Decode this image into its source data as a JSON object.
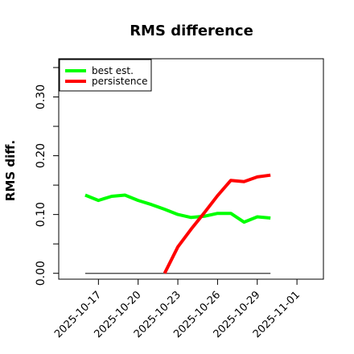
{
  "chart_data": {
    "type": "line",
    "title": "RMS difference",
    "xlabel": "",
    "ylabel": "RMS diff.",
    "x_start": "2025-10-16",
    "x_ticks": [
      "2025-10-17",
      "2025-10-20",
      "2025-10-23",
      "2025-10-26",
      "2025-10-29",
      "2025-11-01"
    ],
    "x_range": [
      "2025-10-14",
      "2025-11-03"
    ],
    "y_ticks": [
      0.0,
      0.1,
      0.2,
      0.3
    ],
    "y_minor_ticks": [
      0.05,
      0.15,
      0.25,
      0.35
    ],
    "ylim": [
      -0.01,
      0.365
    ],
    "legend": {
      "position": "top-left"
    },
    "grid": false,
    "series": [
      {
        "name": "best est.",
        "color": "#00ff00",
        "x": [
          "2025-10-16",
          "2025-10-17",
          "2025-10-18",
          "2025-10-19",
          "2025-10-20",
          "2025-10-21",
          "2025-10-22",
          "2025-10-23",
          "2025-10-24",
          "2025-10-25",
          "2025-10-26",
          "2025-10-27",
          "2025-10-28",
          "2025-10-29",
          "2025-10-30"
        ],
        "values": [
          0.133,
          0.124,
          0.131,
          0.133,
          0.124,
          0.117,
          0.109,
          0.1,
          0.095,
          0.097,
          0.102,
          0.102,
          0.087,
          0.096,
          0.094
        ]
      },
      {
        "name": "persistence",
        "color": "#ff0000",
        "x": [
          "2025-10-22",
          "2025-10-23",
          "2025-10-24",
          "2025-10-25",
          "2025-10-26",
          "2025-10-27",
          "2025-10-28",
          "2025-10-29",
          "2025-10-30"
        ],
        "values": [
          0.0,
          0.045,
          0.075,
          0.103,
          0.132,
          0.158,
          0.156,
          0.164,
          0.167
        ]
      }
    ],
    "reference_line": {
      "value": 0.0,
      "x": [
        "2025-10-16",
        "2025-10-30"
      ],
      "color": "#555555"
    }
  }
}
